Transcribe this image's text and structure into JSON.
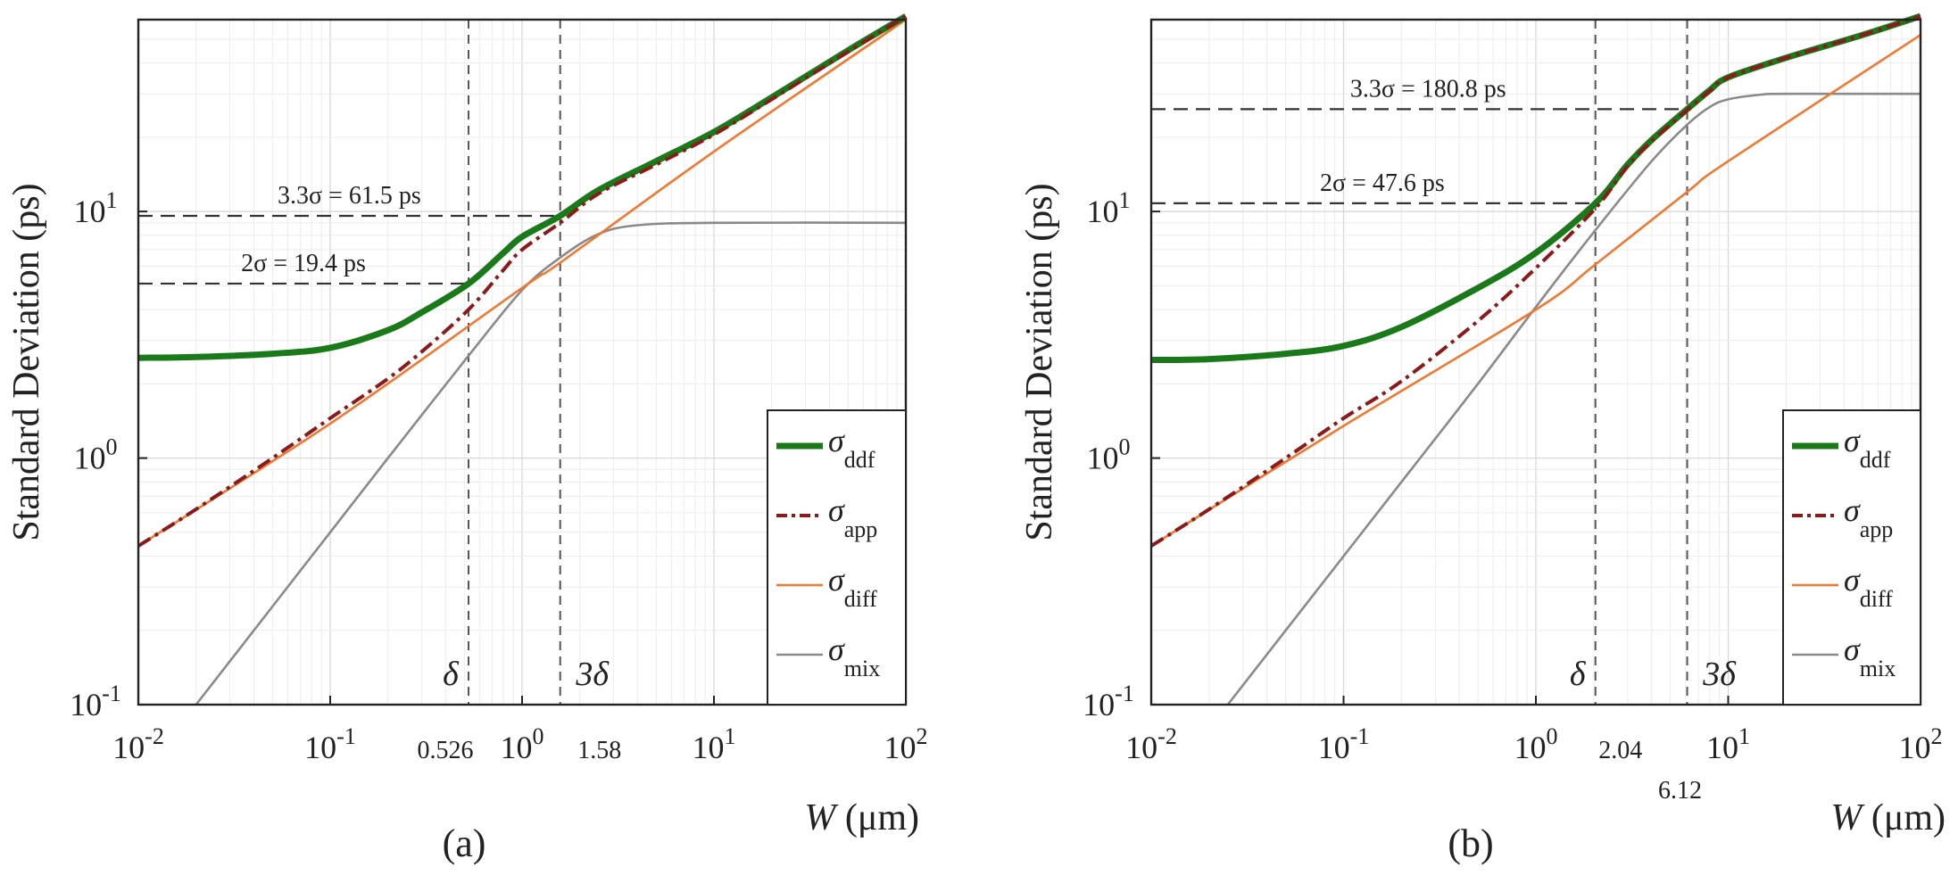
{
  "chart_data": [
    {
      "type": "line",
      "panel_label": "(a)",
      "xscale": "log",
      "yscale": "log",
      "xlim": [
        0.01,
        100
      ],
      "ylim": [
        0.1,
        60
      ],
      "ylabel": "Standard Deviation (ps)",
      "xlabel_var": "W",
      "xlabel_unit": " (μm)",
      "x_ticks": [
        {
          "base": "10",
          "exp": "-2"
        },
        {
          "base": "10",
          "exp": "-1"
        },
        {
          "base": "10",
          "exp": "0"
        },
        {
          "base": "10",
          "exp": "1"
        },
        {
          "base": "10",
          "exp": "2"
        }
      ],
      "y_ticks": [
        {
          "base": "10",
          "exp": "-1"
        },
        {
          "base": "10",
          "exp": "0"
        },
        {
          "base": "10",
          "exp": "1"
        }
      ],
      "vlines": [
        {
          "x": 0.526,
          "symbol": "δ",
          "value_label": "0.526"
        },
        {
          "x": 1.58,
          "symbol": "3δ",
          "value_label": "1.58"
        }
      ],
      "hlines": [
        {
          "y": 9.6,
          "label": "3.3σ = 61.5 ps",
          "x_end": 1.58
        },
        {
          "y": 5.1,
          "label": "2σ = 19.4 ps",
          "x_end": 0.526
        }
      ],
      "legend": [
        {
          "symbol": "σ",
          "sub": "ddf"
        },
        {
          "symbol": "σ",
          "sub": "app"
        },
        {
          "symbol": "σ",
          "sub": "diff"
        },
        {
          "symbol": "σ",
          "sub": "mix"
        }
      ],
      "series": [
        {
          "name": "σddf",
          "color": "#1a7a1a",
          "style": "solid",
          "x": [
            0.01,
            0.02,
            0.05,
            0.1,
            0.2,
            0.3,
            0.526,
            0.8,
            1.0,
            1.58,
            2.5,
            5,
            10,
            20,
            50,
            100
          ],
          "y": [
            2.55,
            2.57,
            2.65,
            2.8,
            3.3,
            3.9,
            5.1,
            6.8,
            7.9,
            9.6,
            12.2,
            16,
            21,
            29,
            45,
            62
          ]
        },
        {
          "name": "σapp",
          "color": "#8b1a1a",
          "style": "dashdot",
          "x": [
            0.01,
            0.02,
            0.05,
            0.1,
            0.2,
            0.3,
            0.526,
            0.8,
            1.0,
            1.58,
            2.5,
            5,
            10,
            20,
            50,
            100
          ],
          "y": [
            0.44,
            0.62,
            1.0,
            1.45,
            2.1,
            2.7,
            4.0,
            5.8,
            7.0,
            9.0,
            11.8,
            15.5,
            20.5,
            28.5,
            44.5,
            62
          ]
        },
        {
          "name": "σdiff",
          "color": "#f07830",
          "style": "solid",
          "x": [
            0.01,
            0.1,
            1.0,
            1.58,
            10,
            100
          ],
          "y": [
            0.44,
            1.38,
            4.9,
            6.2,
            17.5,
            60
          ]
        },
        {
          "name": "σmix",
          "color": "#8a8a8a",
          "style": "solid",
          "x": [
            0.02,
            0.05,
            0.1,
            0.2,
            0.526,
            1.0,
            1.58,
            2.5,
            4,
            10,
            100
          ],
          "y": [
            0.1,
            0.25,
            0.5,
            1.0,
            2.6,
            4.8,
            6.5,
            8.1,
            8.8,
            9.0,
            9.0
          ]
        }
      ]
    },
    {
      "type": "line",
      "panel_label": "(b)",
      "xscale": "log",
      "yscale": "log",
      "xlim": [
        0.01,
        100
      ],
      "ylim": [
        0.1,
        60
      ],
      "ylabel": "Standard Deviation (ps)",
      "xlabel_var": "W",
      "xlabel_unit": " (μm)",
      "x_ticks": [
        {
          "base": "10",
          "exp": "-2"
        },
        {
          "base": "10",
          "exp": "-1"
        },
        {
          "base": "10",
          "exp": "0"
        },
        {
          "base": "10",
          "exp": "1"
        },
        {
          "base": "10",
          "exp": "2"
        }
      ],
      "y_ticks": [
        {
          "base": "10",
          "exp": "-1"
        },
        {
          "base": "10",
          "exp": "0"
        },
        {
          "base": "10",
          "exp": "1"
        }
      ],
      "vlines": [
        {
          "x": 2.04,
          "symbol": "δ",
          "value_label": "2.04"
        },
        {
          "x": 6.12,
          "symbol": "3δ",
          "value_label": "6.12"
        }
      ],
      "hlines": [
        {
          "y": 26,
          "label": "3.3σ = 180.8 ps",
          "x_end": 6.12
        },
        {
          "y": 10.8,
          "label": "2σ = 47.6 ps",
          "x_end": 2.04
        }
      ],
      "legend": [
        {
          "symbol": "σ",
          "sub": "ddf"
        },
        {
          "symbol": "σ",
          "sub": "app"
        },
        {
          "symbol": "σ",
          "sub": "diff"
        },
        {
          "symbol": "σ",
          "sub": "mix"
        }
      ],
      "series": [
        {
          "name": "σddf",
          "color": "#1a7a1a",
          "style": "solid",
          "x": [
            0.01,
            0.02,
            0.05,
            0.1,
            0.2,
            0.5,
            1.0,
            2.04,
            3,
            4,
            6.12,
            8,
            10,
            20,
            50,
            100
          ],
          "y": [
            2.5,
            2.52,
            2.65,
            2.85,
            3.4,
            4.9,
            6.8,
            10.8,
            15.5,
            19.5,
            26,
            31,
            35,
            42,
            52,
            62
          ]
        },
        {
          "name": "σapp",
          "color": "#8b1a1a",
          "style": "dashdot",
          "x": [
            0.01,
            0.02,
            0.05,
            0.1,
            0.2,
            0.5,
            1.0,
            2.04,
            3,
            4,
            6.12,
            8,
            10,
            20,
            50,
            100
          ],
          "y": [
            0.44,
            0.62,
            1.0,
            1.45,
            2.05,
            3.6,
            5.9,
            10.3,
            15.3,
            19.3,
            25.8,
            30.8,
            35,
            42,
            52,
            62
          ]
        },
        {
          "name": "σdiff",
          "color": "#f07830",
          "style": "solid",
          "x": [
            0.01,
            0.1,
            1.0,
            2.04,
            6.12,
            10,
            100
          ],
          "y": [
            0.44,
            1.35,
            4.0,
            6.1,
            12,
            16,
            52
          ]
        },
        {
          "name": "σmix",
          "color": "#8a8a8a",
          "style": "solid",
          "x": [
            0.025,
            0.05,
            0.1,
            0.2,
            0.5,
            1.0,
            2.04,
            4,
            6.12,
            8,
            10,
            15,
            20,
            100
          ],
          "y": [
            0.1,
            0.2,
            0.4,
            0.8,
            2.0,
            4.1,
            8.4,
            16,
            22.5,
            26.5,
            28.5,
            29.8,
            30,
            30
          ]
        }
      ]
    }
  ]
}
